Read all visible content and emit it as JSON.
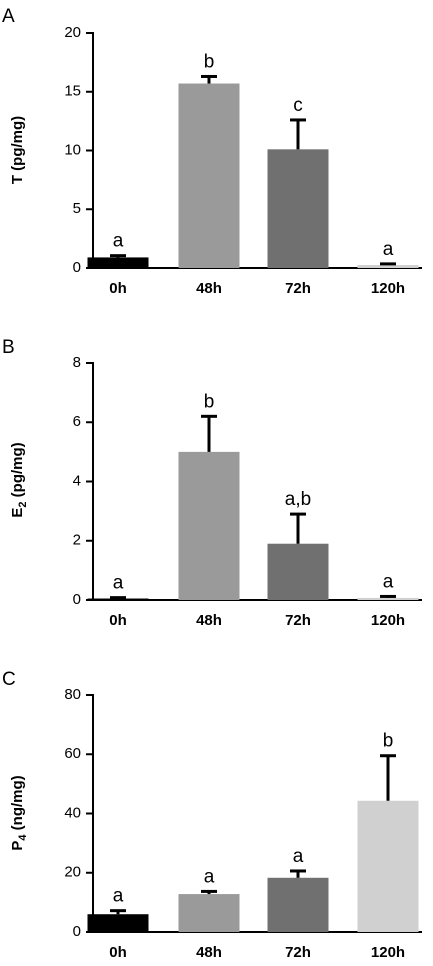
{
  "chart_data": [
    {
      "type": "bar",
      "panel": "A",
      "categories": [
        "0h",
        "48h",
        "72h",
        "120h"
      ],
      "values": [
        0.9,
        15.7,
        10.1,
        0.25
      ],
      "errors": [
        0.15,
        0.6,
        2.5,
        0.1
      ],
      "significance": [
        "a",
        "b",
        "c",
        "a"
      ],
      "colors": [
        "#000000",
        "#9a9a9a",
        "#707070",
        "#d0d0d0"
      ],
      "ylabel": "T (pg/mg)",
      "ylabel_main": "T (pg/mg)",
      "ylabel_sub": "",
      "ylabel_rest": "",
      "ylim": [
        0,
        20
      ],
      "yticks": [
        "0",
        "5",
        "10",
        "15",
        "20"
      ],
      "grid": false,
      "legend": "none"
    },
    {
      "type": "bar",
      "panel": "B",
      "categories": [
        "0h",
        "48h",
        "72h",
        "120h"
      ],
      "values": [
        0.05,
        5.0,
        1.9,
        0.07
      ],
      "errors": [
        0.03,
        1.2,
        1.0,
        0.05
      ],
      "significance": [
        "a",
        "b",
        "a,b",
        "a"
      ],
      "colors": [
        "#000000",
        "#9a9a9a",
        "#707070",
        "#d0d0d0"
      ],
      "ylabel": "E2 (pg/mg)",
      "ylabel_main": "E",
      "ylabel_sub": "2",
      "ylabel_rest": " (pg/mg)",
      "ylim": [
        0,
        8
      ],
      "yticks": [
        "0",
        "2",
        "4",
        "6",
        "8"
      ],
      "grid": false,
      "legend": "none"
    },
    {
      "type": "bar",
      "panel": "C",
      "categories": [
        "0h",
        "48h",
        "72h",
        "120h"
      ],
      "values": [
        6.0,
        12.8,
        18.3,
        44.3
      ],
      "errors": [
        1.2,
        0.9,
        2.3,
        15.2
      ],
      "significance": [
        "a",
        "a",
        "a",
        "b"
      ],
      "colors": [
        "#000000",
        "#9a9a9a",
        "#707070",
        "#d0d0d0"
      ],
      "ylabel": "P4 (ng/mg)",
      "ylabel_main": "P",
      "ylabel_sub": "4",
      "ylabel_rest": " (ng/mg)",
      "ylim": [
        0,
        80
      ],
      "yticks": [
        "0",
        "20",
        "40",
        "60",
        "80"
      ],
      "grid": false,
      "legend": "none"
    }
  ]
}
